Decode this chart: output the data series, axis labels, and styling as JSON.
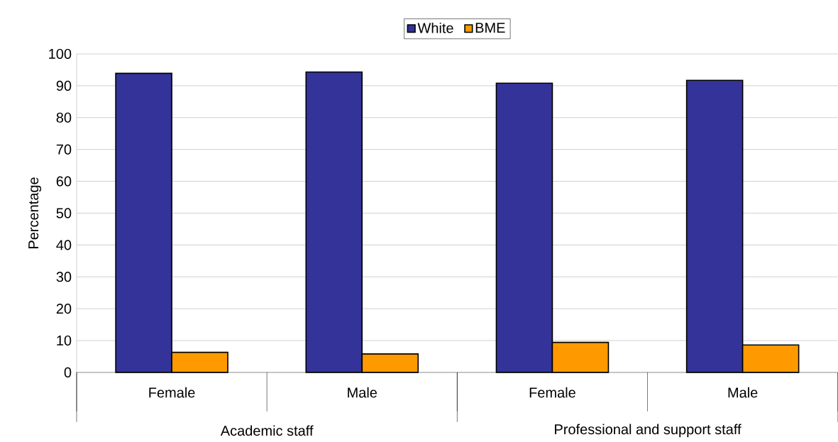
{
  "chart_data": {
    "type": "bar",
    "ylabel": "Percentage",
    "categories": [
      "Female",
      "Male",
      "Female",
      "Male"
    ],
    "series": [
      {
        "name": "White",
        "color": "#333399",
        "values": [
          93.9,
          94.3,
          90.8,
          91.7
        ]
      },
      {
        "name": "BME",
        "color": "#ff9900",
        "values": [
          6.3,
          5.8,
          9.4,
          8.6
        ]
      }
    ],
    "annotations": [
      "Academic staff",
      "Professional and support staff"
    ],
    "ylim": [
      0,
      100
    ],
    "yticks": [
      0,
      10,
      20,
      30,
      40,
      50,
      60,
      70,
      80,
      90,
      100
    ],
    "grid": "y",
    "legend": "top"
  }
}
